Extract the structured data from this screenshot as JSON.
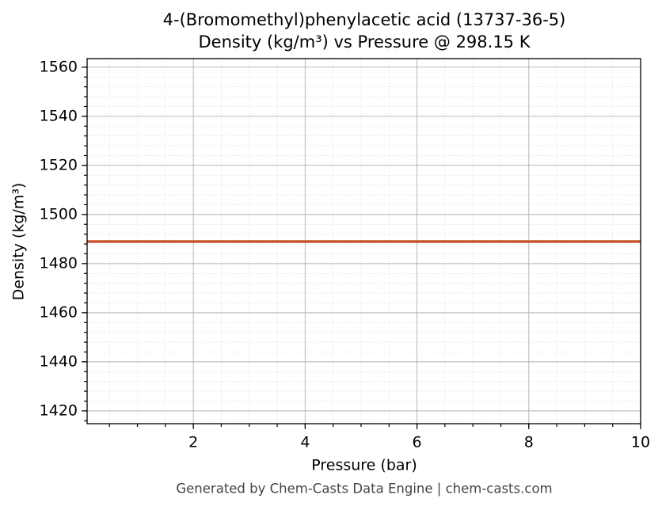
{
  "chart_data": {
    "type": "line",
    "title": "4-(Bromomethyl)phenylacetic acid (13737-36-5)",
    "subtitle": "Density (kg/m³) vs Pressure @ 298.15 K",
    "x_label": "Pressure (bar)",
    "y_label": "Density (kg/m³)",
    "footer": "Generated by Chem-Casts Data Engine | chem-casts.com",
    "x": [
      0.1,
      10
    ],
    "series": [
      {
        "name": "Density",
        "color": "#c8552b",
        "values": [
          1489,
          1489
        ]
      }
    ],
    "xlim": [
      0.1,
      10
    ],
    "xticks": [
      2,
      4,
      6,
      8,
      10
    ],
    "ylim": [
      1414.8,
      1563.5
    ],
    "yticks": [
      1420,
      1440,
      1460,
      1480,
      1500,
      1520,
      1540,
      1560
    ],
    "grid": true,
    "minor_grid": true
  }
}
